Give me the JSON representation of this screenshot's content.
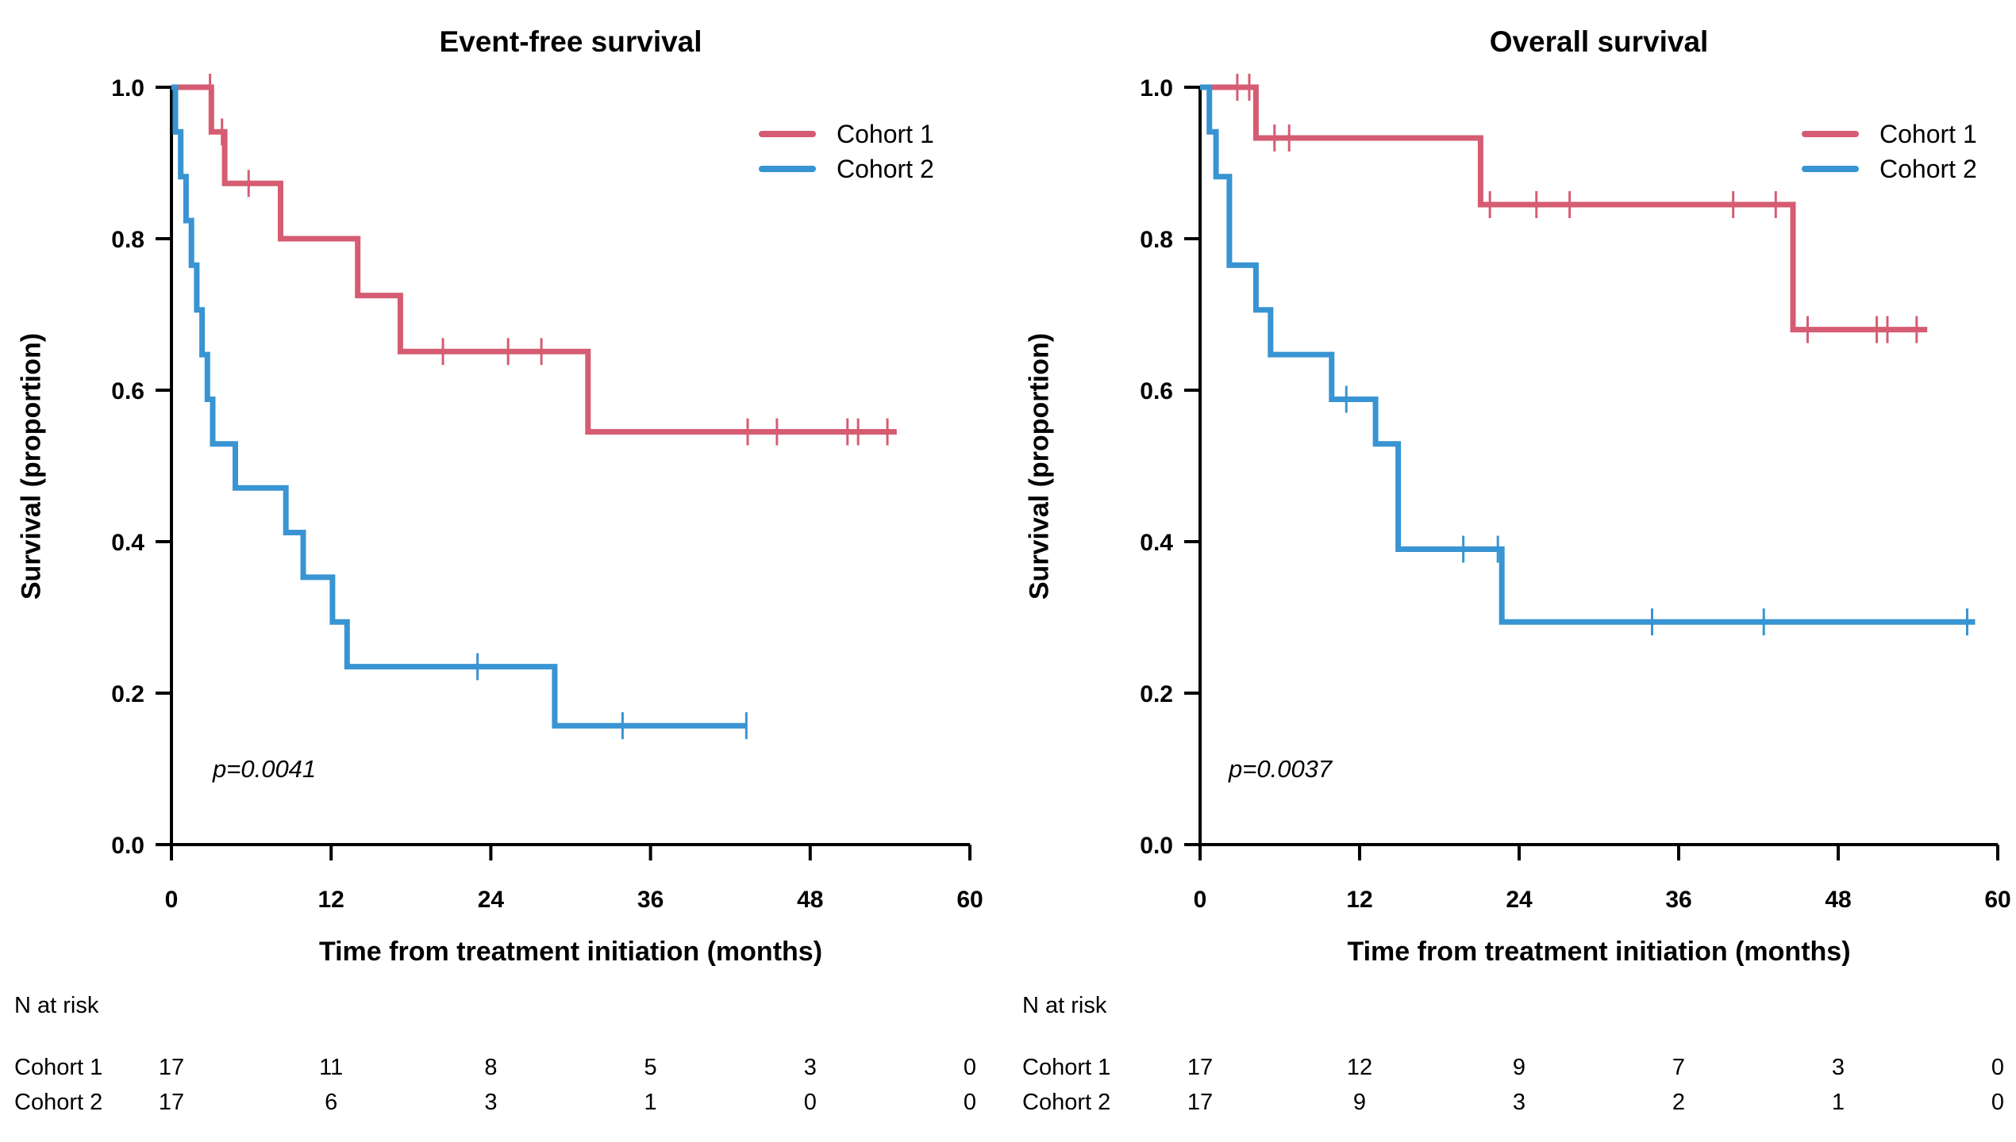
{
  "chart_data": [
    {
      "type": "line",
      "subtype": "kaplan-meier-step",
      "title": "Event-free survival",
      "xlabel": "Time from treatment initiation (months)",
      "ylabel": "Survival (proportion)",
      "p_value_label": "p=0.0041",
      "xlim": [
        0,
        60
      ],
      "ylim": [
        0.0,
        1.0
      ],
      "x_tick_labels": [
        "0",
        "12",
        "24",
        "36",
        "48",
        "60"
      ],
      "y_tick_labels": [
        "1.0",
        "0.8",
        "0.6",
        "0.4",
        "0.2",
        "0.0"
      ],
      "y_tick_values": [
        1.0,
        0.8,
        0.6,
        0.4,
        0.2,
        0.0
      ],
      "grid": false,
      "legend_position": "top-right",
      "series": [
        {
          "name": "Cohort 1",
          "color": "#D55C72",
          "start_y": 1.0,
          "end_x": 54.5,
          "drops": [
            [
              3.0,
              0.941
            ],
            [
              4.0,
              0.873
            ],
            [
              8.2,
              0.8
            ],
            [
              14.0,
              0.725
            ],
            [
              17.2,
              0.651
            ],
            [
              31.3,
              0.545
            ]
          ],
          "censors": [
            [
              2.9,
              1.0
            ],
            [
              3.8,
              0.941
            ],
            [
              5.8,
              0.873
            ],
            [
              20.4,
              0.651
            ],
            [
              25.3,
              0.651
            ],
            [
              27.8,
              0.651
            ],
            [
              43.3,
              0.545
            ],
            [
              45.5,
              0.545
            ],
            [
              50.8,
              0.545
            ],
            [
              51.6,
              0.545
            ],
            [
              53.8,
              0.545
            ]
          ]
        },
        {
          "name": "Cohort 2",
          "color": "#3894D2",
          "start_y": 1.0,
          "end_x": 43.2,
          "drops": [
            [
              0.3,
              0.941
            ],
            [
              0.7,
              0.882
            ],
            [
              1.1,
              0.824
            ],
            [
              1.5,
              0.765
            ],
            [
              1.9,
              0.706
            ],
            [
              2.3,
              0.647
            ],
            [
              2.7,
              0.588
            ],
            [
              3.1,
              0.529
            ],
            [
              4.8,
              0.471
            ],
            [
              8.6,
              0.412
            ],
            [
              9.9,
              0.353
            ],
            [
              12.1,
              0.294
            ],
            [
              13.2,
              0.235
            ],
            [
              28.8,
              0.157
            ]
          ],
          "censors": [
            [
              23.0,
              0.235
            ],
            [
              33.9,
              0.157
            ],
            [
              43.2,
              0.157
            ]
          ]
        }
      ],
      "n_at_risk": {
        "header": "N at risk",
        "time_points": [
          0,
          12,
          24,
          36,
          48,
          60
        ],
        "rows": [
          {
            "label": "Cohort 1",
            "counts": [
              "17",
              "11",
              "8",
              "5",
              "3",
              "0"
            ]
          },
          {
            "label": "Cohort 2",
            "counts": [
              "17",
              "6",
              "3",
              "1",
              "0",
              "0"
            ]
          }
        ]
      }
    },
    {
      "type": "line",
      "subtype": "kaplan-meier-step",
      "title": "Overall survival",
      "xlabel": "Time from treatment initiation (months)",
      "ylabel": "Survival (proportion)",
      "p_value_label": "p=0.0037",
      "xlim": [
        0,
        60
      ],
      "ylim": [
        0.0,
        1.0
      ],
      "x_tick_labels": [
        "0",
        "12",
        "24",
        "36",
        "48",
        "60"
      ],
      "y_tick_labels": [
        "1.0",
        "0.8",
        "0.6",
        "0.4",
        "0.2",
        "0.0"
      ],
      "y_tick_values": [
        1.0,
        0.8,
        0.6,
        0.4,
        0.2,
        0.0
      ],
      "grid": false,
      "legend_position": "top-right",
      "series": [
        {
          "name": "Cohort 1",
          "color": "#D55C72",
          "start_y": 1.0,
          "end_x": 54.7,
          "drops": [
            [
              4.2,
              0.933
            ],
            [
              21.1,
              0.845
            ],
            [
              44.6,
              0.68
            ]
          ],
          "censors": [
            [
              2.8,
              1.0
            ],
            [
              3.7,
              1.0
            ],
            [
              5.6,
              0.933
            ],
            [
              6.7,
              0.933
            ],
            [
              21.8,
              0.845
            ],
            [
              25.3,
              0.845
            ],
            [
              27.8,
              0.845
            ],
            [
              40.1,
              0.845
            ],
            [
              43.3,
              0.845
            ],
            [
              45.7,
              0.68
            ],
            [
              50.9,
              0.68
            ],
            [
              51.7,
              0.68
            ],
            [
              53.9,
              0.68
            ]
          ]
        },
        {
          "name": "Cohort 2",
          "color": "#3894D2",
          "start_y": 1.0,
          "end_x": 58.3,
          "drops": [
            [
              0.7,
              0.941
            ],
            [
              1.2,
              0.882
            ],
            [
              2.2,
              0.765
            ],
            [
              4.2,
              0.706
            ],
            [
              5.3,
              0.647
            ],
            [
              9.9,
              0.588
            ],
            [
              13.2,
              0.529
            ],
            [
              14.9,
              0.39
            ],
            [
              22.7,
              0.294
            ]
          ],
          "censors": [
            [
              11.0,
              0.588
            ],
            [
              19.8,
              0.39
            ],
            [
              22.4,
              0.39
            ],
            [
              34.0,
              0.294
            ],
            [
              42.4,
              0.294
            ],
            [
              57.7,
              0.294
            ]
          ]
        }
      ],
      "n_at_risk": {
        "header": "N at risk",
        "time_points": [
          0,
          12,
          24,
          36,
          48,
          60
        ],
        "rows": [
          {
            "label": "Cohort 1",
            "counts": [
              "17",
              "12",
              "9",
              "7",
              "3",
              "0"
            ]
          },
          {
            "label": "Cohort 2",
            "counts": [
              "17",
              "9",
              "3",
              "2",
              "1",
              "0"
            ]
          }
        ]
      }
    }
  ]
}
